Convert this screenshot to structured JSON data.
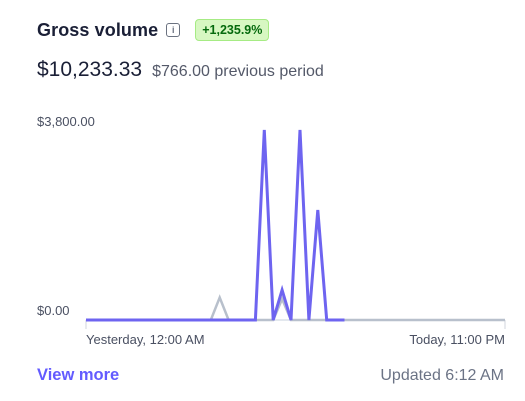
{
  "header": {
    "title": "Gross volume",
    "info_icon": "info-icon",
    "change_badge": "+1,235.9%"
  },
  "amounts": {
    "current": "$10,233.33",
    "previous": "$766.00 previous period"
  },
  "chart_data": {
    "type": "line",
    "y_tick_labels": [
      "$3,800.00",
      "$0.00"
    ],
    "x_tick_labels": [
      "Yesterday, 12:00 AM",
      "Today, 11:00 PM"
    ],
    "ylim": [
      0,
      3800
    ],
    "xlim": [
      0,
      47
    ],
    "series": [
      {
        "color": "#6e64f0",
        "points": [
          [
            0,
            0
          ],
          [
            19,
            0
          ],
          [
            20,
            3800
          ],
          [
            21,
            0
          ],
          [
            22,
            600
          ],
          [
            23,
            0
          ],
          [
            24,
            3800
          ],
          [
            25,
            0
          ],
          [
            26,
            2200
          ],
          [
            27,
            0
          ],
          [
            29,
            0
          ]
        ]
      },
      {
        "color": "#b8c0cc",
        "points": [
          [
            14,
            0
          ],
          [
            15,
            450
          ],
          [
            16,
            0
          ],
          [
            21,
            0
          ],
          [
            22,
            420
          ],
          [
            23,
            0
          ],
          [
            25,
            0
          ],
          [
            47,
            0
          ]
        ]
      }
    ]
  },
  "footer": {
    "view_more": "View more",
    "updated": "Updated 6:12 AM"
  }
}
